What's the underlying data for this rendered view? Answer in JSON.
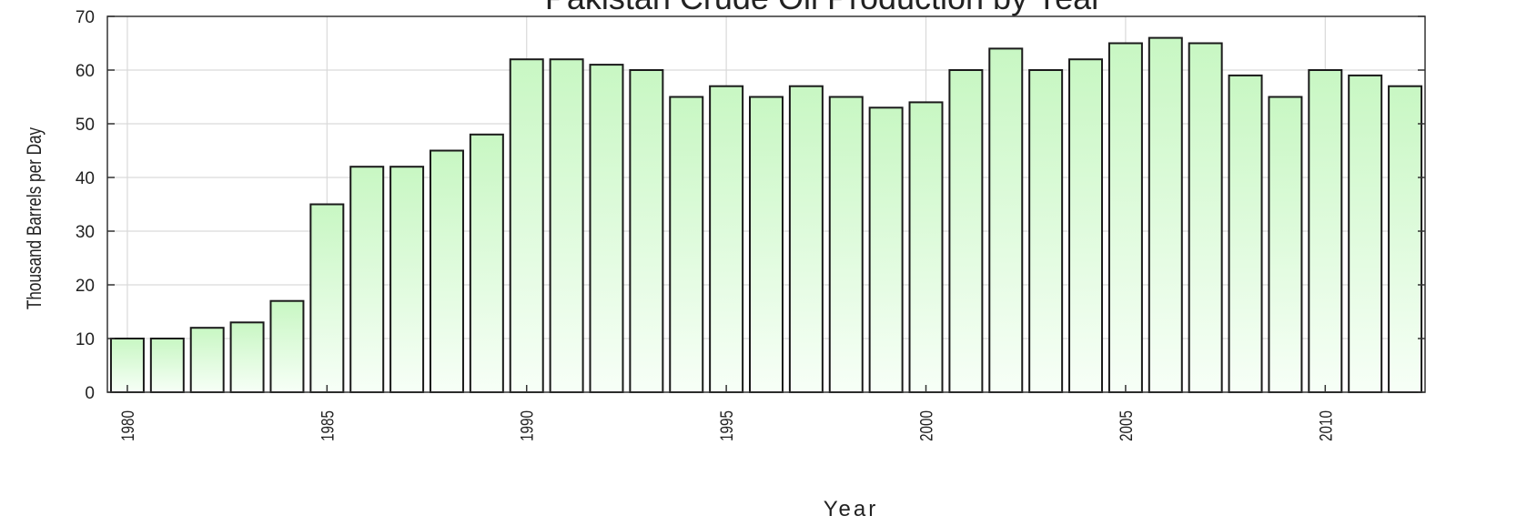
{
  "chart_data": {
    "type": "bar",
    "title": "Pakistan Crude Oil Production by Year",
    "xlabel": "Year",
    "ylabel": "Thousand Barrels per Day",
    "ylim": [
      0,
      70
    ],
    "yticks": [
      0,
      10,
      20,
      30,
      40,
      50,
      60,
      70
    ],
    "xticks": [
      "1980",
      "1985",
      "1990",
      "1995",
      "2000",
      "2005",
      "2010"
    ],
    "grid": true,
    "bar_fill_top": "#c8f7c3",
    "bar_fill_bottom": "#f7fff7",
    "bar_stroke": "#1a1a1a",
    "categories": [
      1980,
      1981,
      1982,
      1983,
      1984,
      1985,
      1986,
      1987,
      1988,
      1989,
      1990,
      1991,
      1992,
      1993,
      1994,
      1995,
      1996,
      1997,
      1998,
      1999,
      2000,
      2001,
      2002,
      2003,
      2004,
      2005,
      2006,
      2007,
      2008,
      2009,
      2010,
      2011,
      2012
    ],
    "values": [
      10,
      10,
      12,
      13,
      17,
      35,
      42,
      42,
      45,
      48,
      62,
      62,
      61,
      60,
      55,
      57,
      55,
      57,
      55,
      53,
      54,
      60,
      64,
      60,
      62,
      65,
      66,
      65,
      59,
      55,
      60,
      59,
      57
    ]
  }
}
